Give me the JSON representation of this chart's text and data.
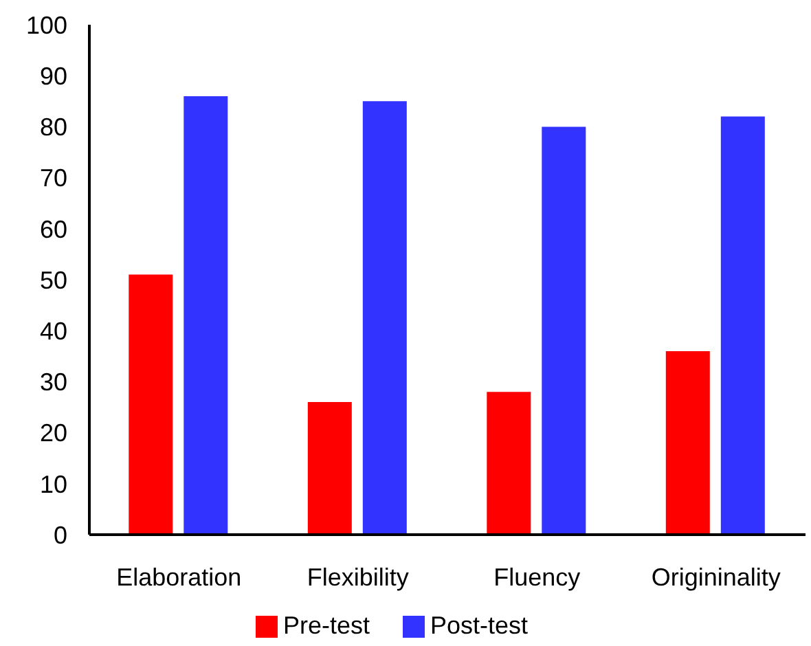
{
  "chart_data": {
    "type": "bar",
    "categories": [
      "Elaboration",
      "Flexibility",
      "Fluency",
      "Origininality"
    ],
    "series": [
      {
        "name": "Pre-test",
        "color": "#ff0000",
        "values": [
          51,
          26,
          28,
          36
        ]
      },
      {
        "name": "Post-test",
        "color": "#3333ff",
        "values": [
          86,
          85,
          80,
          82
        ]
      }
    ],
    "ylim": [
      0,
      100
    ],
    "yticks": [
      0,
      10,
      20,
      30,
      40,
      50,
      60,
      70,
      80,
      90,
      100
    ],
    "grid": false,
    "legend": "bottom"
  }
}
